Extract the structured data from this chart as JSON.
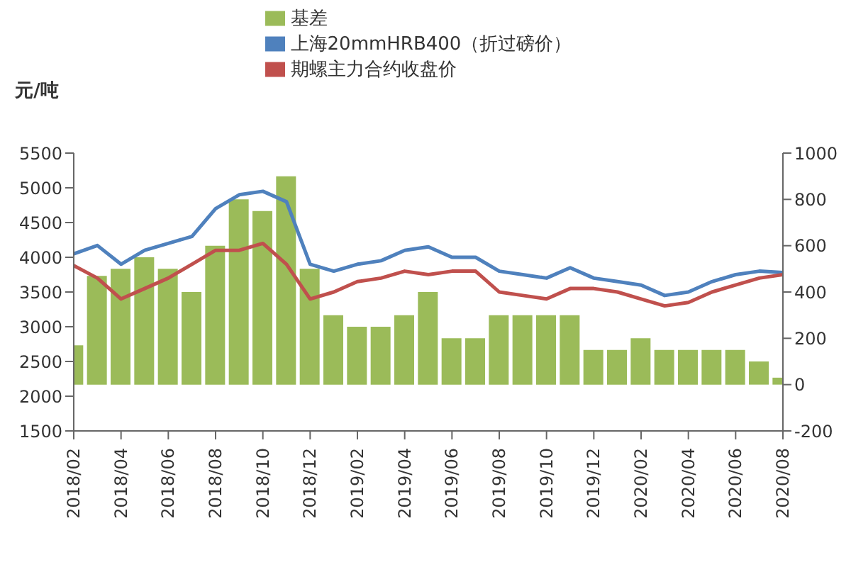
{
  "chart_data": {
    "type": "line",
    "ylabel": "元/吨",
    "x": [
      "2018-02",
      "2018-03",
      "2018-04",
      "2018-05",
      "2018-06",
      "2018-07",
      "2018-08",
      "2018-09",
      "2018-10",
      "2018-11",
      "2018-12",
      "2019-01",
      "2019-02",
      "2019-03",
      "2019-04",
      "2019-05",
      "2019-06",
      "2019-07",
      "2019-08",
      "2019-09",
      "2019-10",
      "2019-11",
      "2019-12",
      "2020-01",
      "2020-02",
      "2020-03",
      "2020-04",
      "2020-05",
      "2020-06",
      "2020-07",
      "2020-08"
    ],
    "series": [
      {
        "name": "基差",
        "type": "bar",
        "axis": "y2",
        "color": "#9bbb59",
        "values": [
          170,
          470,
          500,
          550,
          500,
          400,
          600,
          800,
          750,
          900,
          500,
          300,
          250,
          250,
          300,
          400,
          200,
          200,
          300,
          300,
          300,
          300,
          150,
          150,
          200,
          150,
          150,
          150,
          150,
          100,
          30
        ]
      },
      {
        "name": "上海20mmHRB400（折过磅价）",
        "color": "#4f81bd",
        "values": [
          4050,
          4170,
          3900,
          4100,
          4200,
          4300,
          4700,
          4900,
          4950,
          4800,
          3900,
          3800,
          3900,
          3950,
          4100,
          4150,
          4000,
          4000,
          3800,
          3750,
          3700,
          3850,
          3700,
          3650,
          3600,
          3450,
          3500,
          3650,
          3750,
          3800,
          3780
        ]
      },
      {
        "name": "期螺主力合约收盘价",
        "color": "#c0504d",
        "values": [
          3880,
          3700,
          3400,
          3550,
          3700,
          3900,
          4100,
          4100,
          4200,
          3900,
          3400,
          3500,
          3650,
          3700,
          3800,
          3750,
          3800,
          3800,
          3500,
          3450,
          3400,
          3550,
          3550,
          3500,
          3400,
          3300,
          3350,
          3500,
          3600,
          3700,
          3750
        ]
      }
    ],
    "xlim": [
      "2018-02",
      "2020-08"
    ],
    "xticks": [
      {
        "value": "2018-02",
        "label": "2018/02"
      },
      {
        "value": "2018-04",
        "label": "2018/04"
      },
      {
        "value": "2018-06",
        "label": "2018/06"
      },
      {
        "value": "2018-08",
        "label": "2018/08"
      },
      {
        "value": "2018-10",
        "label": "2018/10"
      },
      {
        "value": "2018-12",
        "label": "2018/12"
      },
      {
        "value": "2019-02",
        "label": "2019/02"
      },
      {
        "value": "2019-04",
        "label": "2019/04"
      },
      {
        "value": "2019-06",
        "label": "2019/06"
      },
      {
        "value": "2019-08",
        "label": "2019/08"
      },
      {
        "value": "2019-10",
        "label": "2019/10"
      },
      {
        "value": "2019-12",
        "label": "2019/12"
      },
      {
        "value": "2020-02",
        "label": "2020/02"
      },
      {
        "value": "2020-04",
        "label": "2020/04"
      },
      {
        "value": "2020-06",
        "label": "2020/06"
      },
      {
        "value": "2020-08",
        "label": "2020/08"
      }
    ],
    "ylim": [
      1500,
      5500
    ],
    "yticks": [
      1500,
      2000,
      2500,
      3000,
      3500,
      4000,
      4500,
      5000,
      5500
    ],
    "y2lim": [
      -200,
      1000
    ],
    "y2ticks": [
      -200,
      0,
      200,
      400,
      600,
      800,
      1000
    ],
    "legend": "top",
    "marker": "none",
    "line_style": "solid"
  }
}
